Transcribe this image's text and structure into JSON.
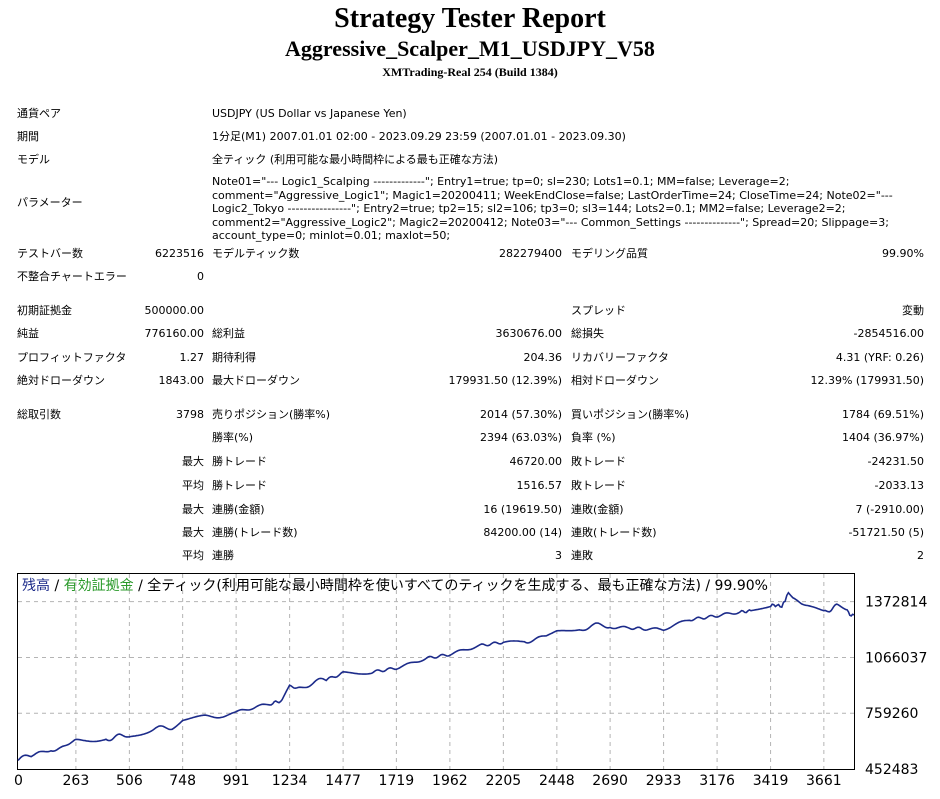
{
  "header": {
    "title": "Strategy Tester Report",
    "subtitle": "Aggressive_Scalper_M1_USDJPY_V58",
    "server": "XMTrading-Real 254 (Build 1384)"
  },
  "info": {
    "pair_label": "通貨ペア",
    "pair_value": "USDJPY (US Dollar vs Japanese Yen)",
    "period_label": "期間",
    "period_value": "1分足(M1) 2007.01.01 02:00 - 2023.09.29 23:59 (2007.01.01 - 2023.09.30)",
    "model_label": "モデル",
    "model_value": "全ティック (利用可能な最小時間枠による最も正確な方法)",
    "params_label": "パラメーター",
    "params_value": "Note01=\"--- Logic1_Scalping -------------\"; Entry1=true; tp=0; sl=230; Lots1=0.1; MM=false; Leverage=2; comment=\"Aggressive_Logic1\"; Magic1=20200411; WeekEndClose=false; LastOrderTime=24; CloseTime=24; Note02=\"--- Logic2_Tokyo ----------------\"; Entry2=true; tp2=15; sl2=106; tp3=0; sl3=144; Lots2=0.1; MM2=false; Leverage2=2; comment2=\"Aggressive_Logic2\"; Magic2=20200412; Note03=\"--- Common_Settings --------------\"; Spread=20; Slippage=3; account_type=0; minlot=0.01; maxlot=50;"
  },
  "stats": {
    "bars_label": "テストバー数",
    "bars_value": "6223516",
    "ticks_label": "モデルティック数",
    "ticks_value": "282279400",
    "quality_label": "モデリング品質",
    "quality_value": "99.90%",
    "mismatch_label": "不整合チャートエラー",
    "mismatch_value": "0",
    "deposit_label": "初期証拠金",
    "deposit_value": "500000.00",
    "spread_label": "スプレッド",
    "spread_value": "変動",
    "net_label": "純益",
    "net_value": "776160.00",
    "gross_profit_label": "総利益",
    "gross_profit_value": "3630676.00",
    "gross_loss_label": "総損失",
    "gross_loss_value": "-2854516.00",
    "pf_label": "プロフィットファクタ",
    "pf_value": "1.27",
    "payoff_label": "期待利得",
    "payoff_value": "204.36",
    "rf_label": "リカバリーファクタ",
    "rf_value": "4.31 (YRF: 0.26)",
    "abs_dd_label": "絶対ドローダウン",
    "abs_dd_value": "1843.00",
    "max_dd_label": "最大ドローダウン",
    "max_dd_value": "179931.50 (12.39%)",
    "rel_dd_label": "相対ドローダウン",
    "rel_dd_value": "12.39% (179931.50)",
    "trades_label": "総取引数",
    "trades_value": "3798",
    "short_label": "売りポジション(勝率%)",
    "short_value": "2014 (57.30%)",
    "long_label": "買いポジション(勝率%)",
    "long_value": "1784 (69.51%)",
    "winrate_label": "勝率(%)",
    "winrate_value": "2394 (63.03%)",
    "lossrate_label": "負率 (%)",
    "lossrate_value": "1404 (36.97%)",
    "max1": "最大",
    "largest_win_label": "勝トレード",
    "largest_win_value": "46720.00",
    "largest_loss_label": "敗トレード",
    "largest_loss_value": "-24231.50",
    "avg1": "平均",
    "avg_win_label": "勝トレード",
    "avg_win_value": "1516.57",
    "avg_loss_label": "敗トレード",
    "avg_loss_value": "-2033.13",
    "max2": "最大",
    "cons_wins_label": "連勝(金額)",
    "cons_wins_value": "16 (19619.50)",
    "cons_losses_label": "連敗(金額)",
    "cons_losses_value": "7 (-2910.00)",
    "max3": "最大",
    "cons_profit_label": "連勝(トレード数)",
    "cons_profit_value": "84200.00 (14)",
    "cons_loss_label": "連敗(トレード数)",
    "cons_loss_value": "-51721.50 (5)",
    "avg2": "平均",
    "avg_cons_wins_label": "連勝",
    "avg_cons_wins_value": "3",
    "avg_cons_losses_label": "連敗",
    "avg_cons_losses_value": "2"
  },
  "chart_legend": {
    "balance": "残高",
    "sep1": " / ",
    "equity": "有効証拠金",
    "rest": " / 全ティック(利用可能な最小時間枠を使いすべてのティックを生成する、最も正確な方法) / 99.90%"
  },
  "chart_data": {
    "type": "line",
    "x_ticks": [
      "0",
      "263",
      "506",
      "748",
      "991",
      "1234",
      "1477",
      "1719",
      "1962",
      "2205",
      "2448",
      "2690",
      "2933",
      "3176",
      "3419",
      "3661"
    ],
    "y_ticks": [
      "1372814",
      "1066037",
      "759260",
      "452483"
    ],
    "ylim": [
      452483,
      1525000
    ],
    "xlim": [
      0,
      3798
    ],
    "grid": true,
    "colors": {
      "balance": "#1c2b8a",
      "grid": "#b4b4b4"
    },
    "series": [
      {
        "name": "残高",
        "x": [
          0,
          60,
          150,
          263,
          400,
          506,
          600,
          700,
          748,
          850,
          991,
          1150,
          1200,
          1234,
          1280,
          1400,
          1477,
          1600,
          1719,
          1850,
          1962,
          2100,
          2205,
          2300,
          2400,
          2448,
          2550,
          2690,
          2780,
          2850,
          2933,
          3050,
          3176,
          3280,
          3330,
          3419,
          3470,
          3500,
          3520,
          3560,
          3600,
          3661,
          3720,
          3760,
          3798
        ],
        "y": [
          500000,
          520000,
          560000,
          600000,
          625000,
          630000,
          660000,
          690000,
          730000,
          735000,
          760000,
          800000,
          820000,
          895000,
          905000,
          940000,
          975000,
          995000,
          1020000,
          1060000,
          1085000,
          1120000,
          1140000,
          1160000,
          1180000,
          1200000,
          1225000,
          1245000,
          1240000,
          1235000,
          1230000,
          1265000,
          1290000,
          1305000,
          1320000,
          1340000,
          1350000,
          1435000,
          1400000,
          1360000,
          1335000,
          1325000,
          1345000,
          1330000,
          1300000
        ]
      }
    ]
  }
}
